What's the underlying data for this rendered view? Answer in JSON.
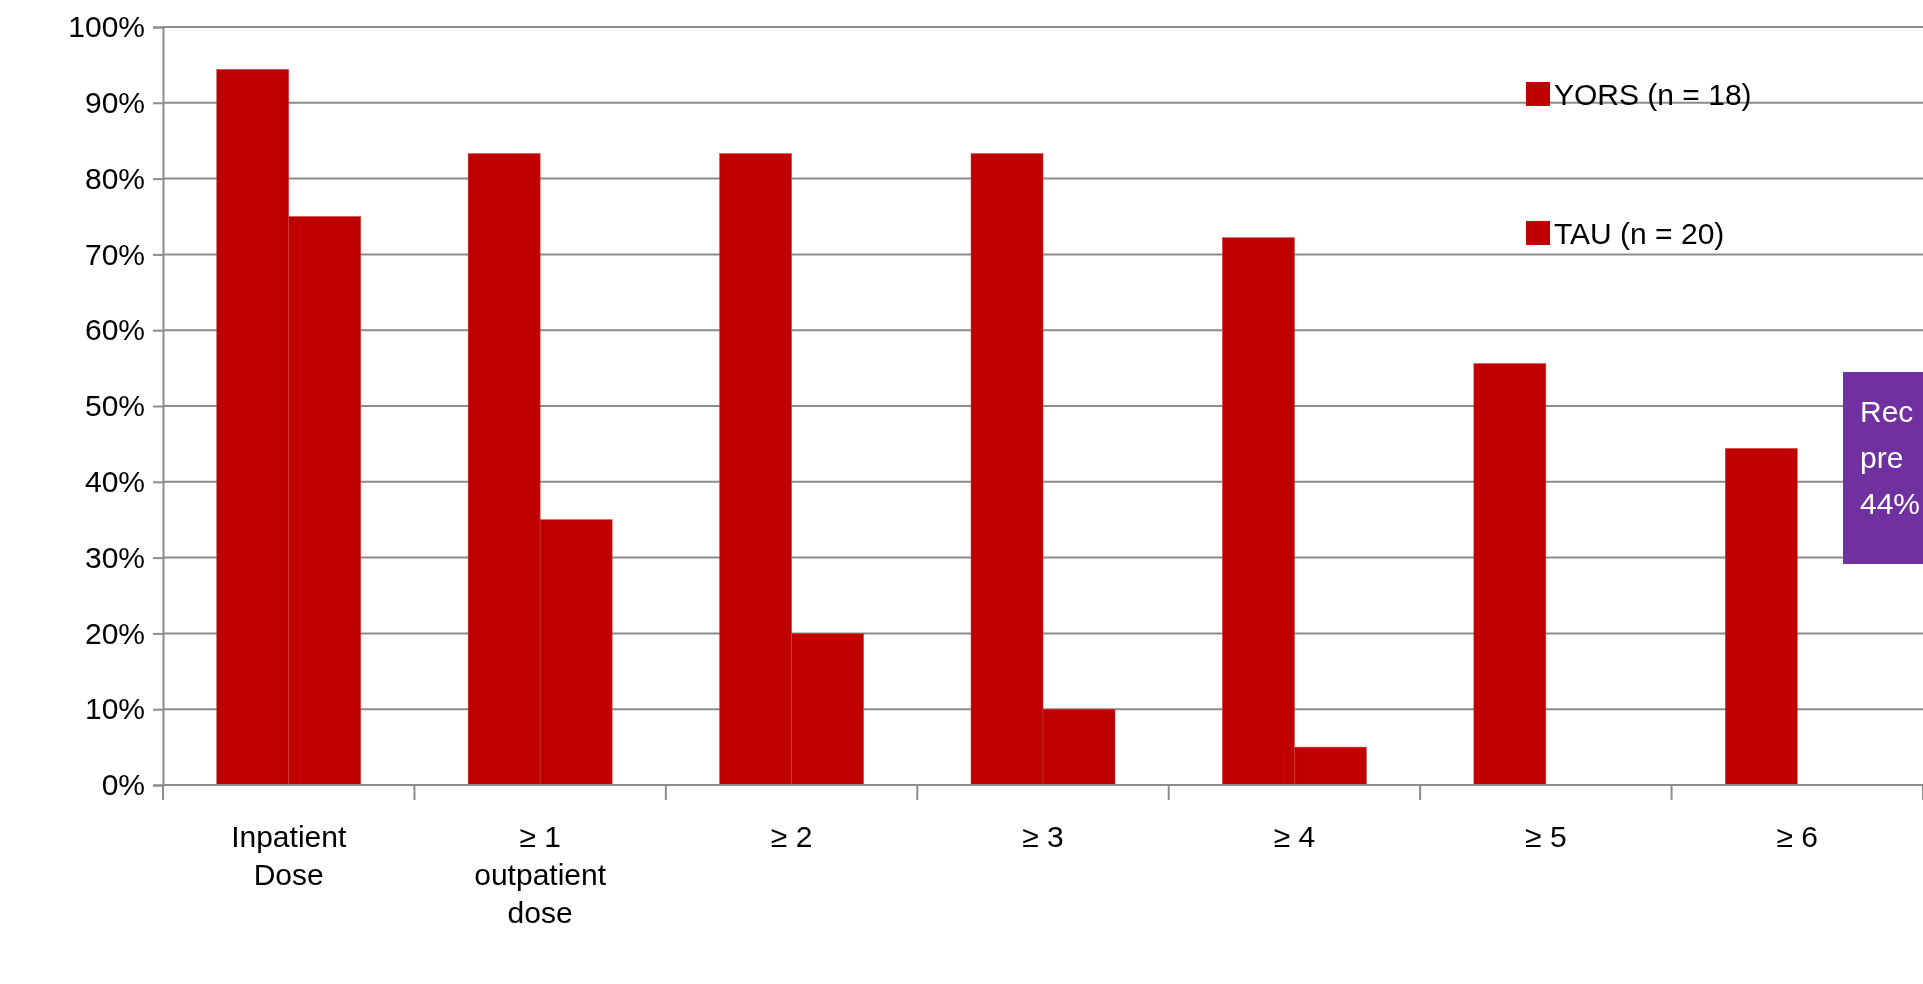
{
  "chart_data": {
    "type": "bar",
    "categories": [
      "Inpatient Dose",
      "≥ 1 outpatient dose",
      "≥ 2",
      "≥ 3",
      "≥ 4",
      "≥ 5",
      "≥ 6"
    ],
    "series": [
      {
        "name": "YORS (n = 18)",
        "color": "#c00000",
        "values": [
          94.4,
          83.3,
          83.3,
          83.3,
          72.2,
          55.6,
          44.4
        ]
      },
      {
        "name": "TAU (n = 20)",
        "color": "#c00000",
        "values": [
          75,
          35,
          20,
          10,
          5,
          0,
          0
        ]
      }
    ],
    "ylim": [
      0,
      100
    ],
    "yticks": [
      {
        "value": 0,
        "label": "0%"
      },
      {
        "value": 10,
        "label": "10%"
      },
      {
        "value": 20,
        "label": "20%"
      },
      {
        "value": 30,
        "label": "30%"
      },
      {
        "value": 40,
        "label": "40%"
      },
      {
        "value": 50,
        "label": "50%"
      },
      {
        "value": 60,
        "label": "60%"
      },
      {
        "value": 70,
        "label": "70%"
      },
      {
        "value": 80,
        "label": "80%"
      },
      {
        "value": 90,
        "label": "90%"
      },
      {
        "value": 100,
        "label": "100%"
      }
    ],
    "grid": "y",
    "legend": "top right",
    "annotations": [
      "Rec\npre\n44%"
    ]
  }
}
